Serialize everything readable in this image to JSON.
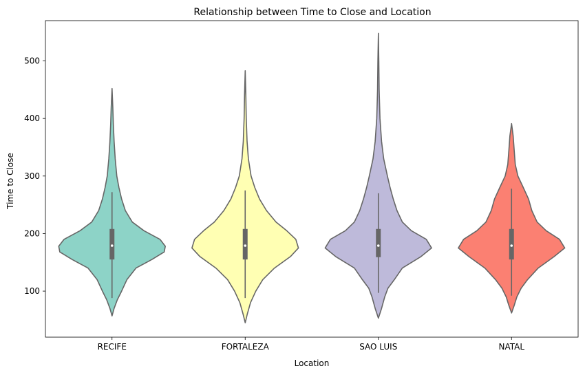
{
  "chart_data": {
    "type": "violin",
    "title": "Relationship between Time to Close and Location",
    "xlabel": "Location",
    "ylabel": "Time to Close",
    "ylim": [
      20,
      570
    ],
    "yticks": [
      100,
      200,
      300,
      400,
      500
    ],
    "grid": false,
    "categories": [
      "RECIFE",
      "FORTALEZA",
      "SAO LUIS",
      "NATAL"
    ],
    "colors": [
      "#8dd3c7",
      "#ffffb3",
      "#bebada",
      "#fb8072"
    ],
    "series": [
      {
        "category": "RECIFE",
        "min": 57,
        "max": 452,
        "whisker_low": 88,
        "whisker_high": 272,
        "q1": 155,
        "median": 179,
        "q3": 208,
        "density": [
          [
            57,
            0.0
          ],
          [
            70,
            0.04
          ],
          [
            85,
            0.1
          ],
          [
            100,
            0.18
          ],
          [
            120,
            0.28
          ],
          [
            140,
            0.45
          ],
          [
            155,
            0.75
          ],
          [
            168,
            0.98
          ],
          [
            178,
            1.0
          ],
          [
            190,
            0.9
          ],
          [
            205,
            0.6
          ],
          [
            220,
            0.38
          ],
          [
            240,
            0.25
          ],
          [
            260,
            0.18
          ],
          [
            280,
            0.13
          ],
          [
            300,
            0.09
          ],
          [
            330,
            0.06
          ],
          [
            360,
            0.04
          ],
          [
            390,
            0.025
          ],
          [
            420,
            0.015
          ],
          [
            452,
            0.0
          ]
        ]
      },
      {
        "category": "FORTALEZA",
        "min": 45,
        "max": 483,
        "whisker_low": 88,
        "whisker_high": 275,
        "q1": 155,
        "median": 179,
        "q3": 208,
        "density": [
          [
            45,
            0.0
          ],
          [
            60,
            0.04
          ],
          [
            80,
            0.1
          ],
          [
            100,
            0.2
          ],
          [
            120,
            0.33
          ],
          [
            140,
            0.55
          ],
          [
            160,
            0.85
          ],
          [
            175,
            1.0
          ],
          [
            190,
            0.95
          ],
          [
            205,
            0.78
          ],
          [
            220,
            0.58
          ],
          [
            240,
            0.4
          ],
          [
            260,
            0.27
          ],
          [
            280,
            0.18
          ],
          [
            300,
            0.11
          ],
          [
            330,
            0.06
          ],
          [
            360,
            0.035
          ],
          [
            400,
            0.02
          ],
          [
            440,
            0.012
          ],
          [
            483,
            0.0
          ]
        ]
      },
      {
        "category": "SAO LUIS",
        "min": 53,
        "max": 548,
        "whisker_low": 97,
        "whisker_high": 270,
        "q1": 159,
        "median": 179,
        "q3": 208,
        "density": [
          [
            53,
            0.0
          ],
          [
            70,
            0.06
          ],
          [
            90,
            0.12
          ],
          [
            105,
            0.18
          ],
          [
            120,
            0.3
          ],
          [
            140,
            0.45
          ],
          [
            160,
            0.8
          ],
          [
            175,
            1.0
          ],
          [
            190,
            0.9
          ],
          [
            205,
            0.62
          ],
          [
            220,
            0.45
          ],
          [
            240,
            0.35
          ],
          [
            260,
            0.28
          ],
          [
            280,
            0.22
          ],
          [
            300,
            0.17
          ],
          [
            330,
            0.1
          ],
          [
            360,
            0.06
          ],
          [
            400,
            0.03
          ],
          [
            450,
            0.015
          ],
          [
            500,
            0.008
          ],
          [
            548,
            0.0
          ]
        ]
      },
      {
        "category": "NATAL",
        "min": 62,
        "max": 391,
        "whisker_low": 92,
        "whisker_high": 278,
        "q1": 155,
        "median": 179,
        "q3": 208,
        "density": [
          [
            62,
            0.0
          ],
          [
            75,
            0.05
          ],
          [
            90,
            0.1
          ],
          [
            105,
            0.18
          ],
          [
            120,
            0.3
          ],
          [
            140,
            0.5
          ],
          [
            160,
            0.8
          ],
          [
            175,
            1.0
          ],
          [
            190,
            0.9
          ],
          [
            205,
            0.65
          ],
          [
            220,
            0.48
          ],
          [
            240,
            0.38
          ],
          [
            260,
            0.32
          ],
          [
            280,
            0.22
          ],
          [
            300,
            0.12
          ],
          [
            320,
            0.07
          ],
          [
            345,
            0.05
          ],
          [
            370,
            0.03
          ],
          [
            391,
            0.0
          ]
        ]
      }
    ]
  }
}
